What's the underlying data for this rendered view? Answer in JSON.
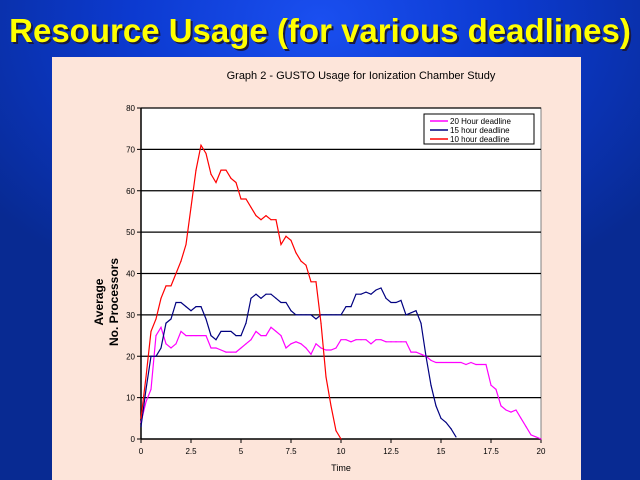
{
  "slide": {
    "title": "Resource Usage (for various deadlines)"
  },
  "colors": {
    "title": "#ffff00",
    "panel": "#fde5da",
    "background": "#0c3ad0"
  },
  "chart_data": {
    "type": "line",
    "title": "Graph 2 - GUSTO Usage for Ionization Chamber Study",
    "xlabel": "Time",
    "ylabel": [
      "Average",
      "No. Processors"
    ],
    "xlim": [
      0,
      20
    ],
    "ylim": [
      0,
      80
    ],
    "xticks": [
      "0",
      "2.5",
      "5",
      "7.5",
      "10",
      "12.5",
      "15",
      "17.5",
      "20"
    ],
    "yticks": [
      "0",
      "10",
      "20",
      "30",
      "40",
      "50",
      "60",
      "70",
      "80"
    ],
    "grid": "horizontal",
    "legend_position": "top-right",
    "series": [
      {
        "name": "20 Hour deadline",
        "color": "#ff00ff",
        "x": [
          0,
          0.25,
          0.5,
          0.75,
          1,
          1.25,
          1.5,
          1.75,
          2,
          2.25,
          2.5,
          2.75,
          3,
          3.25,
          3.5,
          3.75,
          4,
          4.25,
          4.5,
          4.75,
          5,
          5.25,
          5.5,
          5.75,
          6,
          6.25,
          6.5,
          6.75,
          7,
          7.25,
          7.5,
          7.75,
          8,
          8.25,
          8.5,
          8.75,
          9,
          9.25,
          9.5,
          9.75,
          10,
          10.25,
          10.5,
          10.75,
          11,
          11.25,
          11.5,
          11.75,
          12,
          12.25,
          12.5,
          12.75,
          13,
          13.25,
          13.5,
          13.75,
          14,
          14.25,
          14.5,
          14.75,
          15,
          15.25,
          15.5,
          15.75,
          16,
          16.25,
          16.5,
          16.75,
          17,
          17.25,
          17.5,
          17.75,
          18,
          18.25,
          18.5,
          18.75,
          19,
          19.25,
          19.5,
          19.75,
          20
        ],
        "y": [
          4,
          9,
          12,
          25,
          27,
          23,
          22,
          23,
          26,
          25,
          25,
          25,
          25,
          25,
          22,
          22,
          21.5,
          21,
          21,
          21,
          22,
          23,
          24,
          26,
          25,
          25,
          27,
          26,
          25,
          22,
          23,
          23.5,
          23,
          22,
          20.5,
          23,
          22,
          21.5,
          21.5,
          22,
          24,
          24,
          23.5,
          24,
          24,
          24,
          23,
          24,
          24,
          23.5,
          23.5,
          23.5,
          23.5,
          23.5,
          21,
          21,
          20.5,
          20,
          19,
          18.5,
          18.5,
          18.5,
          18.5,
          18.5,
          18.5,
          18,
          18.5,
          18,
          18,
          18,
          13,
          12,
          8,
          7,
          6.5,
          7,
          5,
          3,
          1,
          0.5,
          0
        ]
      },
      {
        "name": "15 hour deadline",
        "color": "#000080",
        "x": [
          0,
          0.25,
          0.5,
          0.75,
          1,
          1.25,
          1.5,
          1.75,
          2,
          2.25,
          2.5,
          2.75,
          3,
          3.25,
          3.5,
          3.75,
          4,
          4.25,
          4.5,
          4.75,
          5,
          5.25,
          5.5,
          5.75,
          6,
          6.25,
          6.5,
          6.75,
          7,
          7.25,
          7.5,
          7.75,
          8,
          8.25,
          8.5,
          8.75,
          9,
          9.25,
          9.5,
          9.75,
          10,
          10.25,
          10.5,
          10.75,
          11,
          11.25,
          11.5,
          11.75,
          12,
          12.25,
          12.5,
          12.75,
          13,
          13.25,
          13.5,
          13.75,
          14,
          14.25,
          14.5,
          14.75,
          15,
          15.25,
          15.5,
          15.75
        ],
        "y": [
          3,
          12,
          20,
          20,
          22,
          28,
          29,
          33,
          33,
          32,
          31,
          32,
          32,
          29,
          25,
          24,
          26,
          26,
          26,
          25,
          25,
          28,
          34,
          35,
          34,
          35,
          35,
          34,
          33,
          33,
          31,
          30,
          30,
          30,
          30,
          29,
          30,
          30,
          30,
          30,
          30,
          32,
          32,
          35,
          35,
          35.5,
          35,
          36,
          36.5,
          34,
          33,
          33,
          33.5,
          30,
          30.5,
          31,
          28,
          20,
          13,
          8,
          5,
          4,
          2.5,
          0.5
        ]
      },
      {
        "name": "10 hour deadline",
        "color": "#ff0000",
        "x": [
          0,
          0.25,
          0.5,
          0.75,
          1,
          1.25,
          1.5,
          1.75,
          2,
          2.25,
          2.5,
          2.75,
          3,
          3.25,
          3.5,
          3.75,
          4,
          4.25,
          4.5,
          4.75,
          5,
          5.25,
          5.5,
          5.75,
          6,
          6.25,
          6.5,
          6.75,
          7,
          7.25,
          7.5,
          7.75,
          8,
          8.25,
          8.5,
          8.75,
          9,
          9.25,
          9.5,
          9.75,
          10
        ],
        "y": [
          5,
          15,
          26,
          29,
          34,
          37,
          37,
          40,
          43,
          47,
          56,
          65,
          71,
          69,
          64,
          62,
          65,
          65,
          63,
          62,
          58,
          58,
          56,
          54,
          53,
          54,
          53,
          53,
          47,
          49,
          48,
          45,
          43,
          42,
          38,
          38,
          28,
          15,
          8,
          2,
          0
        ]
      }
    ]
  }
}
